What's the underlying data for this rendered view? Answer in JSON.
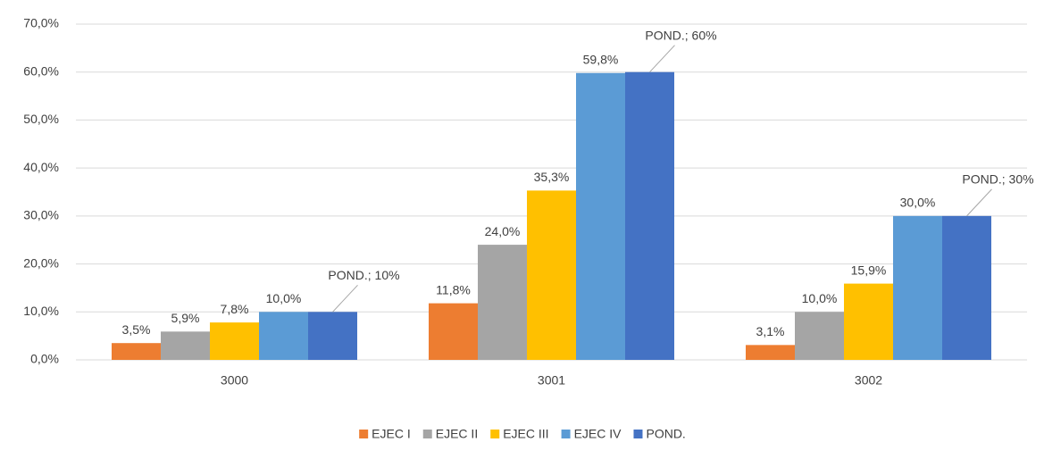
{
  "chart_data": {
    "type": "bar",
    "categories": [
      "3000",
      "3001",
      "3002"
    ],
    "series": [
      {
        "name": "EJEC I",
        "color": "#ED7D31",
        "values": [
          3.5,
          11.8,
          3.1
        ],
        "value_labels": [
          "3,5%",
          "11,8%",
          "3,1%"
        ]
      },
      {
        "name": "EJEC II",
        "color": "#A5A5A5",
        "values": [
          5.9,
          24.0,
          10.0
        ],
        "value_labels": [
          "5,9%",
          "24,0%",
          "10,0%"
        ]
      },
      {
        "name": "EJEC III",
        "color": "#FFC000",
        "values": [
          7.8,
          35.3,
          15.9
        ],
        "value_labels": [
          "7,8%",
          "35,3%",
          "15,9%"
        ]
      },
      {
        "name": "EJEC IV",
        "color": "#5B9BD5",
        "values": [
          10.0,
          59.8,
          30.0
        ],
        "value_labels": [
          "10,0%",
          "59,8%",
          "30,0%"
        ]
      },
      {
        "name": "POND.",
        "color": "#4472C4",
        "values": [
          10,
          60,
          30
        ],
        "value_labels": [
          "POND.; 10%",
          "POND.; 60%",
          "POND.; 30%"
        ]
      }
    ],
    "ylim": [
      0,
      70
    ],
    "yticks": [
      {
        "value": 0,
        "label": "0,0%"
      },
      {
        "value": 10,
        "label": "10,0%"
      },
      {
        "value": 20,
        "label": "20,0%"
      },
      {
        "value": 30,
        "label": "30,0%"
      },
      {
        "value": 40,
        "label": "40,0%"
      },
      {
        "value": 50,
        "label": "50,0%"
      },
      {
        "value": 60,
        "label": "60,0%"
      },
      {
        "value": 70,
        "label": "70,0%"
      }
    ],
    "grid": true,
    "legend": "bottom"
  }
}
